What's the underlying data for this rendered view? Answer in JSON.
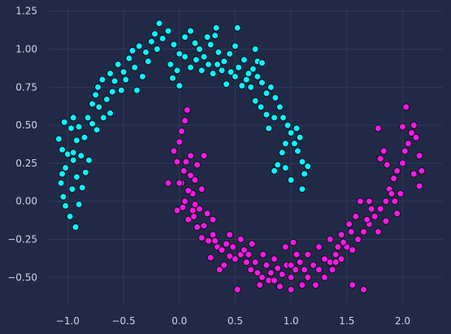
{
  "chart_data": {
    "type": "scatter",
    "title": "",
    "xlabel": "",
    "ylabel": "",
    "xlim": [
      -1.17,
      2.36
    ],
    "ylim": [
      -0.68,
      1.27
    ],
    "grid": true,
    "x_ticks": [
      -1.0,
      -0.5,
      0.0,
      0.5,
      1.0,
      1.5,
      2.0
    ],
    "x_tick_labels": [
      "−1.0",
      "−0.5",
      "0.0",
      "0.5",
      "1.0",
      "1.5",
      "2.0"
    ],
    "y_ticks": [
      -0.5,
      -0.25,
      0.0,
      0.25,
      0.5,
      0.75,
      1.0,
      1.25
    ],
    "y_tick_labels": [
      "−0.50",
      "−0.25",
      "0.00",
      "0.25",
      "0.50",
      "0.75",
      "1.00",
      "1.25"
    ],
    "colors": {
      "background": "#212946",
      "grid": "#2e3a5e",
      "edge": "#0b0f1e"
    },
    "series": [
      {
        "color": "#08F7FE",
        "points": [
          [
            -1.08,
            0.41
          ],
          [
            -1.05,
            0.34
          ],
          [
            -1.02,
            0.22
          ],
          [
            -1.05,
            0.18
          ],
          [
            -1.06,
            0.12
          ],
          [
            -1.04,
            0.03
          ],
          [
            -1.02,
            -0.03
          ],
          [
            -0.98,
            -0.1
          ],
          [
            -0.96,
            0.08
          ],
          [
            -0.92,
            0.16
          ],
          [
            -0.95,
            0.27
          ],
          [
            -1.0,
            0.31
          ],
          [
            -0.92,
            0.4
          ],
          [
            -0.97,
            0.48
          ],
          [
            -1.03,
            0.52
          ],
          [
            -0.95,
            0.55
          ],
          [
            -0.9,
            0.49
          ],
          [
            -0.85,
            0.42
          ],
          [
            -0.88,
            0.3
          ],
          [
            -0.84,
            0.19
          ],
          [
            -0.87,
            0.09
          ],
          [
            -0.9,
            -0.02
          ],
          [
            -0.93,
            -0.17
          ],
          [
            -0.81,
            0.27
          ],
          [
            -0.82,
            0.55
          ],
          [
            -0.78,
            0.64
          ],
          [
            -0.75,
            0.7
          ],
          [
            -0.72,
            0.62
          ],
          [
            -0.78,
            0.51
          ],
          [
            -0.74,
            0.47
          ],
          [
            -0.68,
            0.55
          ],
          [
            -0.73,
            0.75
          ],
          [
            -0.69,
            0.8
          ],
          [
            -0.65,
            0.67
          ],
          [
            -0.6,
            0.72
          ],
          [
            -0.58,
            0.79
          ],
          [
            -0.62,
            0.84
          ],
          [
            -0.55,
            0.9
          ],
          [
            -0.5,
            0.85
          ],
          [
            -0.48,
            0.8
          ],
          [
            -0.52,
            0.73
          ],
          [
            -0.45,
            0.94
          ],
          [
            -0.4,
            0.88
          ],
          [
            -0.42,
            0.99
          ],
          [
            -0.36,
            1.02
          ],
          [
            -0.3,
            0.98
          ],
          [
            -0.28,
            0.92
          ],
          [
            -0.33,
            0.82
          ],
          [
            -0.25,
            1.05
          ],
          [
            -0.2,
            1.0
          ],
          [
            -0.22,
            1.1
          ],
          [
            -0.15,
            1.07
          ],
          [
            -0.1,
            1.12
          ],
          [
            -0.05,
            1.03
          ],
          [
            0.0,
            0.97
          ],
          [
            0.05,
            1.08
          ],
          [
            0.1,
            1.12
          ],
          [
            0.14,
            1.04
          ],
          [
            0.18,
            1.0
          ],
          [
            0.22,
            0.95
          ],
          [
            0.28,
            1.03
          ],
          [
            0.32,
            1.09
          ],
          [
            0.35,
            0.98
          ],
          [
            0.4,
            0.92
          ],
          [
            0.45,
            0.97
          ],
          [
            0.5,
            1.02
          ],
          [
            0.53,
            0.88
          ],
          [
            0.58,
            0.93
          ],
          [
            0.62,
            0.84
          ],
          [
            0.66,
            0.87
          ],
          [
            0.7,
            0.82
          ],
          [
            0.74,
            0.78
          ],
          [
            0.78,
            0.71
          ],
          [
            0.82,
            0.75
          ],
          [
            0.86,
            0.68
          ],
          [
            0.9,
            0.62
          ],
          [
            0.93,
            0.55
          ],
          [
            0.97,
            0.5
          ],
          [
            1.0,
            0.45
          ],
          [
            1.03,
            0.38
          ],
          [
            1.06,
            0.33
          ],
          [
            1.1,
            0.26
          ],
          [
            1.12,
            0.18
          ],
          [
            1.1,
            0.08
          ],
          [
            1.15,
            0.23
          ],
          [
            1.08,
            0.42
          ],
          [
            1.05,
            0.48
          ],
          [
            0.95,
            0.38
          ],
          [
            0.92,
            0.32
          ],
          [
            0.88,
            0.24
          ],
          [
            0.85,
            0.2
          ],
          [
            0.95,
            0.22
          ],
          [
            1.0,
            0.14
          ],
          [
            0.8,
            0.48
          ],
          [
            0.78,
            0.57
          ],
          [
            0.73,
            0.62
          ],
          [
            0.68,
            0.66
          ],
          [
            0.64,
            0.75
          ],
          [
            0.6,
            0.8
          ],
          [
            0.56,
            0.76
          ],
          [
            0.5,
            0.82
          ],
          [
            0.46,
            0.85
          ],
          [
            0.42,
            0.77
          ],
          [
            0.38,
            0.86
          ],
          [
            0.34,
            0.9
          ],
          [
            0.3,
            0.84
          ],
          [
            0.26,
            0.9
          ],
          [
            0.2,
            0.86
          ],
          [
            0.15,
            0.93
          ],
          [
            0.1,
            0.88
          ],
          [
            0.05,
            0.95
          ],
          [
            -0.02,
            0.86
          ],
          [
            -0.06,
            0.81
          ],
          [
            -0.08,
            0.9
          ],
          [
            0.7,
            0.92
          ],
          [
            0.85,
            0.55
          ],
          [
            0.74,
            0.91
          ],
          [
            -0.95,
            0.32
          ],
          [
            -0.62,
            0.58
          ],
          [
            -0.38,
            0.73
          ],
          [
            0.0,
            0.76
          ],
          [
            0.25,
            1.08
          ],
          [
            0.52,
            1.14
          ],
          [
            0.68,
            1.0
          ],
          [
            -0.18,
            1.17
          ],
          [
            0.33,
            1.14
          ]
        ]
      },
      {
        "color": "#FE19E6",
        "points": [
          [
            -0.05,
            0.33
          ],
          [
            0.02,
            0.46
          ],
          [
            0.05,
            0.53
          ],
          [
            0.07,
            0.6
          ],
          [
            0.0,
            0.39
          ],
          [
            -0.02,
            0.26
          ],
          [
            0.04,
            0.2
          ],
          [
            -0.1,
            0.12
          ],
          [
            0.02,
            0.12
          ],
          [
            0.06,
            0.26
          ],
          [
            0.1,
            0.17
          ],
          [
            0.12,
            0.05
          ],
          [
            0.08,
            0.07
          ],
          [
            0.14,
            -0.02
          ],
          [
            0.18,
            -0.05
          ],
          [
            0.14,
            0.14
          ],
          [
            0.05,
            0.0
          ],
          [
            -0.02,
            -0.06
          ],
          [
            0.03,
            -0.04
          ],
          [
            0.08,
            -0.12
          ],
          [
            0.13,
            -0.1
          ],
          [
            0.16,
            -0.17
          ],
          [
            0.22,
            -0.16
          ],
          [
            0.2,
            -0.24
          ],
          [
            0.26,
            -0.26
          ],
          [
            0.3,
            -0.22
          ],
          [
            0.34,
            -0.3
          ],
          [
            0.38,
            -0.32
          ],
          [
            0.42,
            -0.28
          ],
          [
            0.45,
            -0.36
          ],
          [
            0.48,
            -0.3
          ],
          [
            0.5,
            -0.38
          ],
          [
            0.55,
            -0.35
          ],
          [
            0.6,
            -0.4
          ],
          [
            0.64,
            -0.45
          ],
          [
            0.68,
            -0.4
          ],
          [
            0.7,
            -0.47
          ],
          [
            0.74,
            -0.5
          ],
          [
            0.78,
            -0.42
          ],
          [
            0.82,
            -0.47
          ],
          [
            0.85,
            -0.38
          ],
          [
            0.88,
            -0.44
          ],
          [
            0.92,
            -0.48
          ],
          [
            0.96,
            -0.42
          ],
          [
            1.0,
            -0.5
          ],
          [
            1.04,
            -0.45
          ],
          [
            1.08,
            -0.4
          ],
          [
            1.12,
            -0.45
          ],
          [
            1.15,
            -0.5
          ],
          [
            1.2,
            -0.42
          ],
          [
            1.25,
            -0.45
          ],
          [
            1.3,
            -0.38
          ],
          [
            1.35,
            -0.4
          ],
          [
            1.4,
            -0.35
          ],
          [
            1.45,
            -0.38
          ],
          [
            1.5,
            -0.3
          ],
          [
            1.55,
            -0.32
          ],
          [
            1.6,
            -0.25
          ],
          [
            1.65,
            -0.2
          ],
          [
            1.7,
            -0.15
          ],
          [
            1.75,
            -0.1
          ],
          [
            1.8,
            -0.05
          ],
          [
            1.85,
            0.0
          ],
          [
            1.88,
            0.08
          ],
          [
            1.92,
            0.15
          ],
          [
            1.95,
            0.2
          ],
          [
            2.0,
            0.25
          ],
          [
            2.02,
            0.33
          ],
          [
            2.05,
            0.38
          ],
          [
            2.08,
            0.45
          ],
          [
            2.1,
            0.5
          ],
          [
            2.12,
            0.42
          ],
          [
            2.15,
            0.3
          ],
          [
            2.17,
            0.2
          ],
          [
            2.03,
            0.62
          ],
          [
            2.0,
            0.49
          ],
          [
            1.78,
            0.48
          ],
          [
            1.83,
            0.33
          ],
          [
            1.8,
            0.28
          ],
          [
            1.86,
            0.24
          ],
          [
            1.9,
            0.05
          ],
          [
            1.93,
            0.0
          ],
          [
            1.98,
            0.05
          ],
          [
            1.95,
            -0.08
          ],
          [
            1.85,
            -0.13
          ],
          [
            1.78,
            -0.2
          ],
          [
            1.72,
            -0.05
          ],
          [
            1.68,
            -0.12
          ],
          [
            1.62,
            0.0
          ],
          [
            1.58,
            -0.1
          ],
          [
            1.54,
            -0.2
          ],
          [
            1.47,
            -0.27
          ],
          [
            1.42,
            -0.3
          ],
          [
            1.37,
            -0.45
          ],
          [
            1.3,
            -0.5
          ],
          [
            1.22,
            -0.55
          ],
          [
            1.1,
            -0.55
          ],
          [
            1.0,
            -0.58
          ],
          [
            0.9,
            -0.56
          ],
          [
            0.8,
            -0.52
          ],
          [
            0.72,
            -0.55
          ],
          [
            0.52,
            -0.58
          ],
          [
            0.36,
            -0.45
          ],
          [
            0.28,
            -0.37
          ],
          [
            0.4,
            -0.42
          ],
          [
            0.62,
            -0.35
          ],
          [
            1.05,
            -0.35
          ],
          [
            1.55,
            -0.55
          ],
          [
            1.65,
            -0.58
          ],
          [
            0.22,
            0.3
          ],
          [
            0.16,
            0.24
          ],
          [
            0.2,
            0.08
          ],
          [
            0.25,
            -0.08
          ],
          [
            0.3,
            -0.12
          ],
          [
            0.32,
            -0.26
          ],
          [
            0.45,
            -0.22
          ],
          [
            0.55,
            -0.25
          ],
          [
            0.58,
            -0.32
          ],
          [
            0.65,
            -0.28
          ],
          [
            0.75,
            -0.35
          ],
          [
            0.95,
            -0.3
          ],
          [
            1.02,
            -0.27
          ],
          [
            1.15,
            -0.35
          ],
          [
            1.25,
            -0.3
          ],
          [
            1.35,
            -0.25
          ],
          [
            1.45,
            -0.22
          ],
          [
            1.52,
            -0.15
          ],
          [
            1.7,
            0.0
          ],
          [
            2.15,
            0.1
          ],
          [
            2.1,
            0.18
          ],
          [
            1.0,
            -0.42
          ],
          [
            0.85,
            -0.52
          ],
          [
            1.4,
            -0.4
          ],
          [
            0.0,
            0.12
          ],
          [
            0.1,
            0.3
          ],
          [
            0.12,
            -0.06
          ]
        ]
      }
    ]
  }
}
